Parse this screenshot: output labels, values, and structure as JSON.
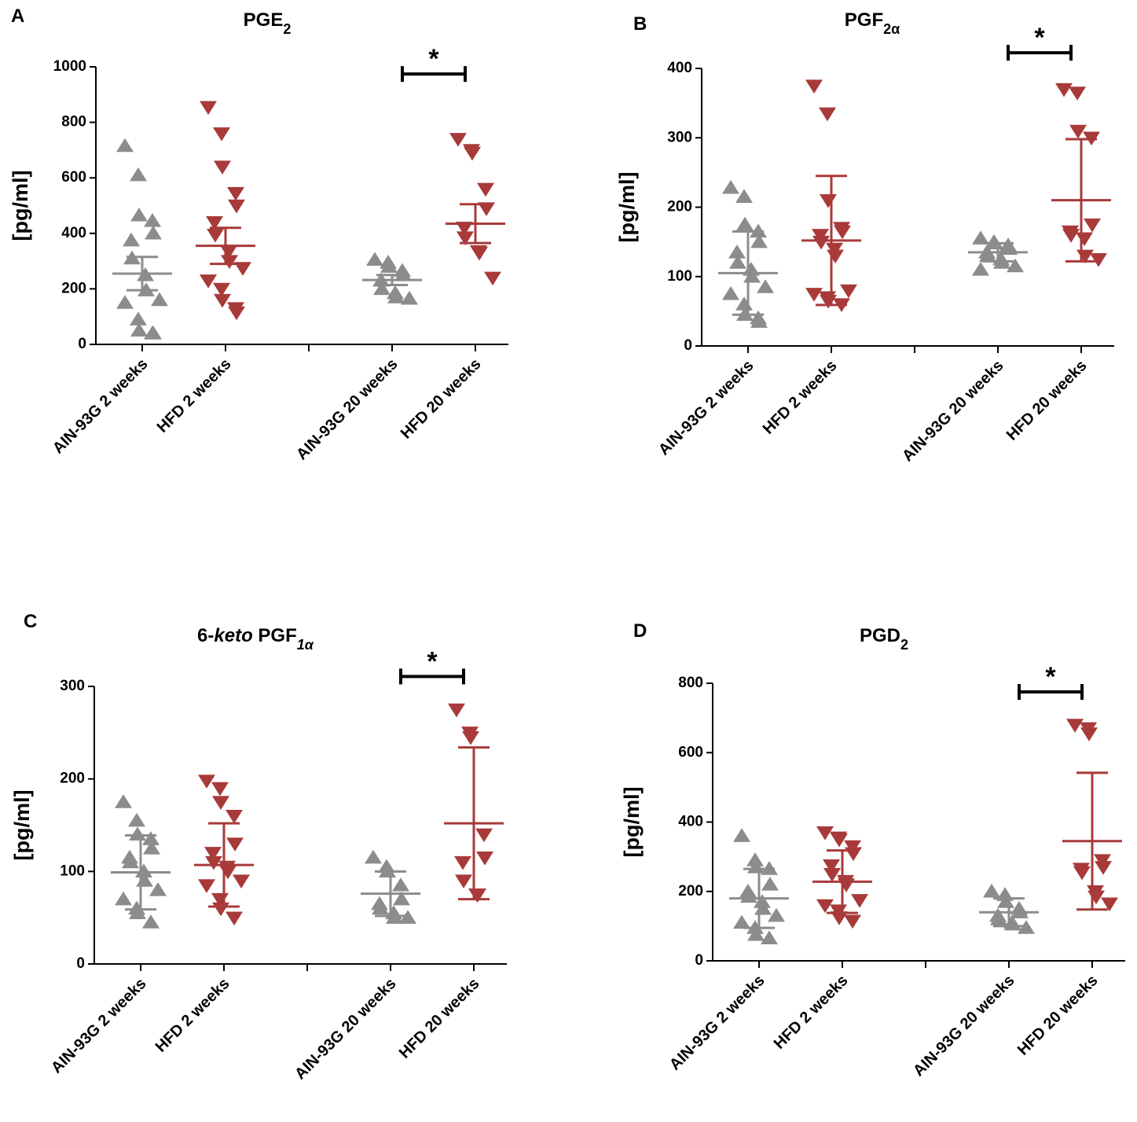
{
  "chart_data": [
    {
      "type": "scatter",
      "panel": "A",
      "title": [
        {
          "text": "PGE"
        },
        {
          "text": "2",
          "sub": true
        }
      ],
      "ylabel": "[pg/ml]",
      "categories": [
        "AIN-93G 2 weeks",
        "HFD 2 weeks",
        null,
        "AIN-93G 20 weeks",
        "HFD 20 weeks"
      ],
      "ylim": [
        0,
        1000
      ],
      "yticks": [
        0,
        200,
        400,
        600,
        800,
        1000
      ],
      "series": [
        {
          "category": "AIN-93G 2 weeks",
          "color": "#8c8c8c",
          "marker": "triangle-up",
          "points": [
            715,
            610,
            465,
            445,
            400,
            375,
            310,
            250,
            195,
            160,
            150,
            90,
            50,
            40,
            40
          ],
          "mean": 255,
          "error": 60
        },
        {
          "category": "HFD 2 weeks",
          "color": "#a83a3a",
          "marker": "triangle-down",
          "points": [
            855,
            760,
            640,
            545,
            500,
            440,
            395,
            335,
            300,
            275,
            230,
            200,
            160,
            130,
            115
          ],
          "mean": 355,
          "error": 65
        },
        {
          "category": "AIN-93G 20 weeks",
          "color": "#8c8c8c",
          "marker": "triangle-up",
          "points": [
            305,
            295,
            280,
            265,
            250,
            230,
            200,
            185,
            170,
            165
          ],
          "mean": 232,
          "error": 18
        },
        {
          "category": "HFD 20 weeks",
          "color": "#a83a3a",
          "marker": "triangle-down",
          "points": [
            740,
            700,
            690,
            560,
            490,
            420,
            385,
            335,
            330,
            240
          ],
          "mean": 435,
          "error": 70
        }
      ],
      "significance": {
        "text": "*",
        "between": [
          "AIN-93G 20 weeks",
          "HFD 20 weeks"
        ]
      }
    },
    {
      "type": "scatter",
      "panel": "B",
      "title": [
        {
          "text": "PGF"
        },
        {
          "text": "2α",
          "sub": true
        }
      ],
      "ylabel": "[pg/ml]",
      "categories": [
        "AIN-93G 2 weeks",
        "HFD 2 weeks",
        null,
        "AIN-93G 20 weeks",
        "HFD 20 weeks"
      ],
      "ylim": [
        0,
        400
      ],
      "yticks": [
        0,
        100,
        200,
        300,
        400
      ],
      "series": [
        {
          "category": "AIN-93G 2 weeks",
          "color": "#8c8c8c",
          "marker": "triangle-up",
          "points": [
            228,
            215,
            175,
            165,
            150,
            135,
            120,
            110,
            100,
            85,
            75,
            60,
            45,
            40,
            35
          ],
          "mean": 105,
          "error": 60
        },
        {
          "category": "HFD 2 weeks",
          "color": "#a83a3a",
          "marker": "triangle-down",
          "points": [
            375,
            335,
            210,
            170,
            165,
            160,
            150,
            140,
            130,
            80,
            75,
            70,
            65,
            60
          ],
          "mean": 152,
          "error": 93
        },
        {
          "category": "AIN-93G 20 weeks",
          "color": "#8c8c8c",
          "marker": "triangle-up",
          "points": [
            155,
            150,
            148,
            145,
            140,
            135,
            130,
            125,
            120,
            115,
            110
          ],
          "mean": 135,
          "error": 13
        },
        {
          "category": "HFD 20 weeks",
          "color": "#a83a3a",
          "marker": "triangle-down",
          "points": [
            370,
            365,
            310,
            300,
            175,
            165,
            160,
            155,
            130,
            125
          ],
          "mean": 210,
          "error": 88
        }
      ],
      "significance": {
        "text": "*",
        "between": [
          "AIN-93G 20 weeks",
          "HFD 20 weeks"
        ]
      }
    },
    {
      "type": "scatter",
      "panel": "C",
      "title": [
        {
          "text": "6-"
        },
        {
          "text": "keto",
          "italic": true
        },
        {
          "text": " PGF"
        },
        {
          "text": "1α",
          "sub": true,
          "italic": true
        }
      ],
      "ylabel": "[pg/ml]",
      "categories": [
        "AIN-93G 2 weeks",
        "HFD 2 weeks",
        null,
        "AIN-93G 20 weeks",
        "HFD 20 weeks"
      ],
      "ylim": [
        0,
        300
      ],
      "yticks": [
        0,
        100,
        200,
        300
      ],
      "series": [
        {
          "category": "AIN-93G 2 weeks",
          "color": "#8c8c8c",
          "marker": "triangle-up",
          "points": [
            175,
            155,
            140,
            135,
            125,
            115,
            110,
            100,
            90,
            80,
            70,
            60,
            55,
            45
          ],
          "mean": 99,
          "error": 40
        },
        {
          "category": "HFD 2 weeks",
          "color": "#a83a3a",
          "marker": "triangle-down",
          "points": [
            198,
            190,
            175,
            160,
            130,
            120,
            110,
            105,
            100,
            90,
            85,
            70,
            60,
            50
          ],
          "mean": 107,
          "error": 45
        },
        {
          "category": "AIN-93G 20 weeks",
          "color": "#8c8c8c",
          "marker": "triangle-up",
          "points": [
            115,
            105,
            100,
            85,
            70,
            65,
            60,
            55,
            50,
            50
          ],
          "mean": 76,
          "error": 24
        },
        {
          "category": "HFD 20 weeks",
          "color": "#a83a3a",
          "marker": "triangle-down",
          "points": [
            275,
            250,
            245,
            140,
            115,
            110,
            90,
            75,
            75
          ],
          "mean": 152,
          "error": 82
        }
      ],
      "significance": {
        "text": "*",
        "between": [
          "AIN-93G 20 weeks",
          "HFD 20 weeks"
        ]
      }
    },
    {
      "type": "scatter",
      "panel": "D",
      "title": [
        {
          "text": "PGD"
        },
        {
          "text": "2",
          "sub": true
        }
      ],
      "ylabel": "[pg/ml]",
      "categories": [
        "AIN-93G 2 weeks",
        "HFD 2 weeks",
        null,
        "AIN-93G 20 weeks",
        "HFD 20 weeks"
      ],
      "ylim": [
        0,
        800
      ],
      "yticks": [
        0,
        200,
        400,
        600,
        800
      ],
      "series": [
        {
          "category": "AIN-93G 2 weeks",
          "color": "#8c8c8c",
          "marker": "triangle-up",
          "points": [
            360,
            290,
            270,
            265,
            220,
            200,
            185,
            170,
            150,
            130,
            110,
            95,
            75,
            65
          ],
          "mean": 180,
          "error": 85
        },
        {
          "category": "HFD 2 weeks",
          "color": "#a83a3a",
          "marker": "triangle-down",
          "points": [
            370,
            355,
            350,
            330,
            310,
            275,
            250,
            230,
            220,
            175,
            160,
            145,
            125,
            115
          ],
          "mean": 228,
          "error": 90
        },
        {
          "category": "AIN-93G 20 weeks",
          "color": "#8c8c8c",
          "marker": "triangle-up",
          "points": [
            200,
            190,
            170,
            150,
            140,
            130,
            120,
            110,
            105,
            95
          ],
          "mean": 140,
          "error": 40
        },
        {
          "category": "HFD 20 weeks",
          "color": "#a83a3a",
          "marker": "triangle-down",
          "points": [
            680,
            670,
            655,
            290,
            270,
            265,
            255,
            200,
            185,
            165
          ],
          "mean": 345,
          "error": 197
        }
      ],
      "significance": {
        "text": "*",
        "between": [
          "AIN-93G 20 weeks",
          "HFD 20 weeks"
        ]
      }
    }
  ]
}
